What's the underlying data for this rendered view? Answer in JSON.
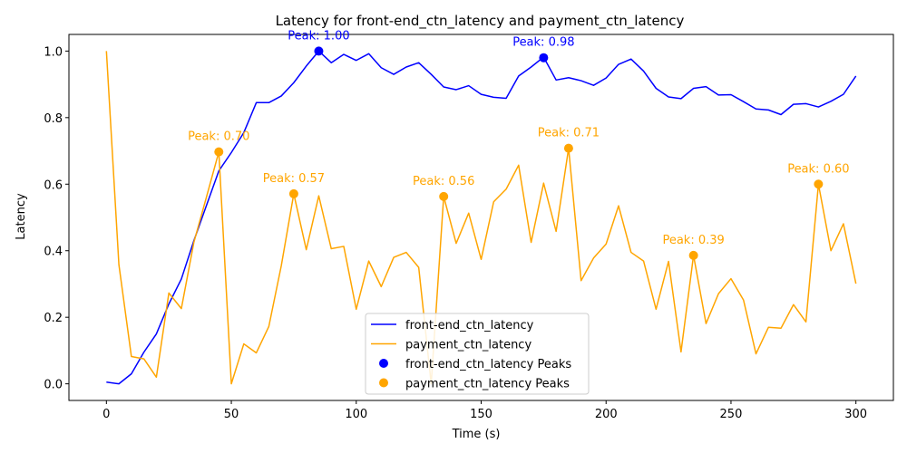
{
  "chart_data": {
    "type": "line",
    "title": "Latency for front-end_ctn_latency and payment_ctn_latency",
    "xlabel": "Time (s)",
    "ylabel": "Latency",
    "xlim": [
      -15,
      315
    ],
    "ylim": [
      -0.05,
      1.05
    ],
    "xticks": [
      0,
      50,
      100,
      150,
      200,
      250,
      300
    ],
    "yticks": [
      0.0,
      0.2,
      0.4,
      0.6,
      0.8,
      1.0
    ],
    "xtick_labels": [
      "0",
      "50",
      "100",
      "150",
      "200",
      "250",
      "300"
    ],
    "ytick_labels": [
      "0.0",
      "0.2",
      "0.4",
      "0.6",
      "0.8",
      "1.0"
    ],
    "grid": false,
    "legend_position": "bottom-center",
    "x": [
      0,
      5,
      10,
      15,
      20,
      25,
      30,
      35,
      40,
      45,
      50,
      55,
      60,
      65,
      70,
      75,
      80,
      85,
      90,
      95,
      100,
      105,
      110,
      115,
      120,
      125,
      130,
      135,
      140,
      145,
      150,
      155,
      160,
      165,
      170,
      175,
      180,
      185,
      190,
      195,
      200,
      205,
      210,
      215,
      220,
      225,
      230,
      235,
      240,
      245,
      250,
      255,
      260,
      265,
      270,
      275,
      280,
      285,
      290,
      295,
      300
    ],
    "series": [
      {
        "name": "front-end_ctn_latency",
        "color": "#0000ff",
        "values": [
          0.005,
          0.0,
          0.03,
          0.095,
          0.15,
          0.24,
          0.315,
          0.43,
          0.535,
          0.64,
          0.695,
          0.755,
          0.845,
          0.845,
          0.865,
          0.905,
          0.955,
          1.0,
          0.965,
          0.99,
          0.972,
          0.992,
          0.95,
          0.93,
          0.952,
          0.965,
          0.93,
          0.892,
          0.884,
          0.896,
          0.87,
          0.861,
          0.858,
          0.925,
          0.952,
          0.982,
          0.913,
          0.92,
          0.911,
          0.897,
          0.919,
          0.96,
          0.976,
          0.94,
          0.888,
          0.862,
          0.857,
          0.888,
          0.893,
          0.868,
          0.869,
          0.848,
          0.826,
          0.823,
          0.809,
          0.84,
          0.842,
          0.832,
          0.849,
          0.87,
          0.925
        ]
      },
      {
        "name": "payment_ctn_latency",
        "color": "#ffa500",
        "values": [
          1.0,
          0.358,
          0.082,
          0.075,
          0.02,
          0.273,
          0.226,
          0.425,
          0.56,
          0.697,
          0.0,
          0.12,
          0.093,
          0.172,
          0.355,
          0.571,
          0.403,
          0.565,
          0.406,
          0.413,
          0.224,
          0.369,
          0.292,
          0.38,
          0.395,
          0.35,
          0.0,
          0.563,
          0.422,
          0.513,
          0.374,
          0.547,
          0.585,
          0.657,
          0.425,
          0.603,
          0.458,
          0.708,
          0.31,
          0.378,
          0.42,
          0.535,
          0.395,
          0.369,
          0.224,
          0.368,
          0.096,
          0.386,
          0.181,
          0.271,
          0.316,
          0.252,
          0.09,
          0.17,
          0.167,
          0.238,
          0.186,
          0.6,
          0.4,
          0.481,
          0.301
        ]
      }
    ],
    "peaks": [
      {
        "series": "front-end_ctn_latency",
        "color": "#0000ff",
        "x": 85,
        "y": 1.0,
        "label": "Peak: 1.00"
      },
      {
        "series": "front-end_ctn_latency",
        "color": "#0000ff",
        "x": 175,
        "y": 0.98,
        "label": "Peak: 0.98"
      },
      {
        "series": "payment_ctn_latency",
        "color": "#ffa500",
        "x": 45,
        "y": 0.697,
        "label": "Peak: 0.70"
      },
      {
        "series": "payment_ctn_latency",
        "color": "#ffa500",
        "x": 75,
        "y": 0.571,
        "label": "Peak: 0.57"
      },
      {
        "series": "payment_ctn_latency",
        "color": "#ffa500",
        "x": 135,
        "y": 0.563,
        "label": "Peak: 0.56"
      },
      {
        "series": "payment_ctn_latency",
        "color": "#ffa500",
        "x": 185,
        "y": 0.708,
        "label": "Peak: 0.71"
      },
      {
        "series": "payment_ctn_latency",
        "color": "#ffa500",
        "x": 235,
        "y": 0.386,
        "label": "Peak: 0.39"
      },
      {
        "series": "payment_ctn_latency",
        "color": "#ffa500",
        "x": 285,
        "y": 0.6,
        "label": "Peak: 0.60"
      }
    ],
    "legend": [
      {
        "label": "front-end_ctn_latency",
        "kind": "line",
        "color": "#0000ff"
      },
      {
        "label": "payment_ctn_latency",
        "kind": "line",
        "color": "#ffa500"
      },
      {
        "label": "front-end_ctn_latency Peaks",
        "kind": "marker",
        "color": "#0000ff"
      },
      {
        "label": "payment_ctn_latency Peaks",
        "kind": "marker",
        "color": "#ffa500"
      }
    ]
  }
}
